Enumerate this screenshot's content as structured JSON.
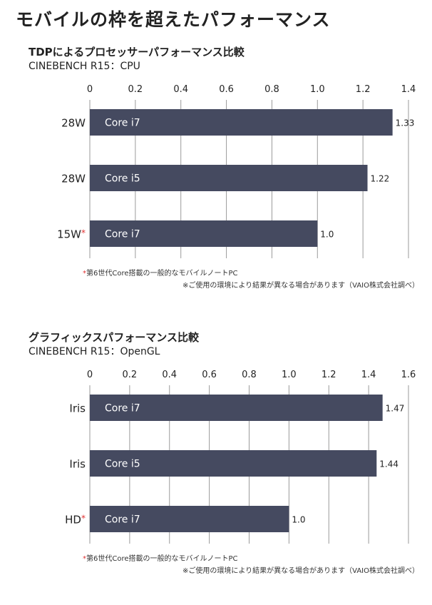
{
  "page": {
    "title": "モバイルの枠を超えたパフォーマンス"
  },
  "colors": {
    "bar": "#454a60",
    "bar_text": "#ffffff",
    "grid": "#9a9a9a",
    "asterisk": "#e03030",
    "text": "#222222"
  },
  "chart_data": [
    {
      "type": "bar",
      "orientation": "horizontal",
      "title": "TDPによるプロセッサーパフォーマンス比較",
      "subtitle": "CINEBENCH R15：CPU",
      "xlim": [
        0,
        1.4
      ],
      "x_ticks": [
        "0",
        "0.2",
        "0.4",
        "0.6",
        "0.8",
        "1.0",
        "1.2",
        "1.4"
      ],
      "categories": [
        "28W",
        "28W",
        "15W"
      ],
      "category_asterisk": [
        false,
        false,
        true
      ],
      "bar_labels": [
        "Core i7",
        "Core i5",
        "Core i7"
      ],
      "values": [
        1.33,
        1.22,
        1.0
      ],
      "value_labels": [
        "1.33",
        "1.22",
        "1.0"
      ],
      "grid": true,
      "notes": [
        {
          "mark": "*",
          "text": "第6世代Core搭載の一般的なモバイルノートPC"
        },
        {
          "text": "※ご使用の環境により結果が異なる場合があります（VAIO株式会社調べ）"
        }
      ]
    },
    {
      "type": "bar",
      "orientation": "horizontal",
      "title": "グラフィックスパフォーマンス比較",
      "subtitle": "CINEBENCH R15：OpenGL",
      "xlim": [
        0,
        1.6
      ],
      "x_ticks": [
        "0",
        "0.2",
        "0.4",
        "0.6",
        "0.8",
        "1.0",
        "1.2",
        "1.4",
        "1.6"
      ],
      "categories": [
        "Iris",
        "Iris",
        "HD"
      ],
      "category_asterisk": [
        false,
        false,
        true
      ],
      "bar_labels": [
        "Core i7",
        "Core i5",
        "Core i7"
      ],
      "values": [
        1.47,
        1.44,
        1.0
      ],
      "value_labels": [
        "1.47",
        "1.44",
        "1.0"
      ],
      "grid": true,
      "notes": [
        {
          "mark": "*",
          "text": "第6世代Core搭載の一般的なモバイルノートPC"
        },
        {
          "text": "※ご使用の環境により結果が異なる場合があります（VAIO株式会社調べ）"
        }
      ]
    }
  ]
}
